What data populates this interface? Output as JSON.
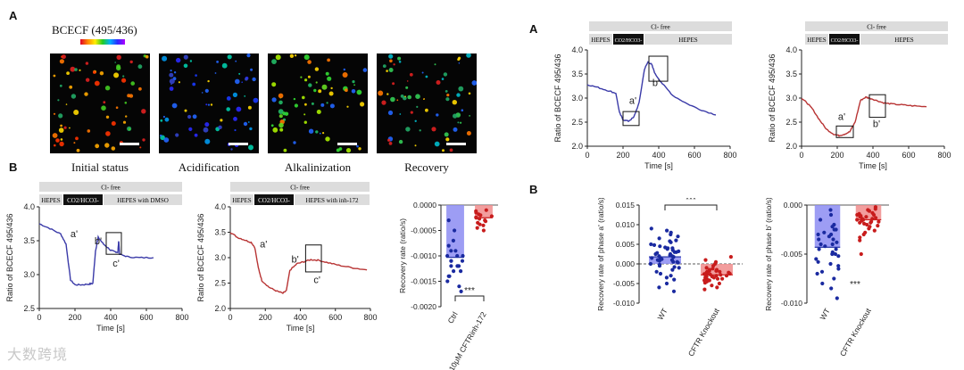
{
  "panel_letters": {
    "left_top": "A",
    "left_bottom": "B",
    "right_top": "A",
    "right_bottom": "B"
  },
  "colorbar": {
    "title": "BCECF (495/436)"
  },
  "micro_captions": [
    "Initial status",
    "Acidification",
    "Alkalinization",
    "Recovery"
  ],
  "protocol_bars": {
    "left1": {
      "top": "Cl- free",
      "seg1": "HEPES",
      "seg2": "CO2/HCO3-",
      "seg3": "HEPES with DMSO"
    },
    "left2": {
      "top": "Cl- free",
      "seg1": "HEPES",
      "seg2": "CO2/HCO3-",
      "seg3": "HEPES with inh-172"
    },
    "right1": {
      "top": "Cl- free",
      "seg1": "HEPES",
      "seg2": "CO2/HCO3-",
      "seg3": "HEPES"
    },
    "right2": {
      "top": "Cl- free",
      "seg1": "HEPES",
      "seg2": "CO2/HCO3-",
      "seg3": "HEPES"
    }
  },
  "colors": {
    "blue_trace": "#3a3aa8",
    "red_trace": "#b83434",
    "blue_bar": "#8c8cf2",
    "red_bar": "#f08c8c",
    "blue_dot": "#1a2aa0",
    "red_dot": "#c81c1c"
  },
  "chart_data": [
    {
      "id": "B-trace-dmso",
      "type": "line",
      "ylabel": "Ratio of BCECF 495/436",
      "xlabel": "Time [s]",
      "xlim": [
        0,
        800
      ],
      "ylim": [
        2.5,
        4.0
      ],
      "xticks": [
        "0",
        "200",
        "400",
        "600",
        "800"
      ],
      "yticks": [
        "2.5",
        "3.0",
        "3.5",
        "4.0"
      ],
      "annotations": [
        "a'",
        "b'",
        "c'"
      ],
      "series": [
        {
          "name": "DMSO",
          "x": [
            0,
            60,
            120,
            150,
            175,
            200,
            240,
            280,
            300,
            315,
            330,
            360,
            400,
            420,
            440,
            445,
            450,
            500,
            560,
            640
          ],
          "y": [
            3.75,
            3.68,
            3.6,
            3.45,
            2.92,
            2.85,
            2.85,
            2.86,
            2.87,
            3.35,
            3.55,
            3.45,
            3.36,
            3.34,
            3.33,
            3.5,
            3.3,
            3.26,
            3.25,
            3.25
          ]
        }
      ]
    },
    {
      "id": "B-trace-inh172",
      "type": "line",
      "ylabel": "Ratio of BCECF 495/436",
      "xlabel": "Time [s]",
      "xlim": [
        0,
        800
      ],
      "ylim": [
        2.0,
        4.0
      ],
      "xticks": [
        "0",
        "200",
        "400",
        "600",
        "800"
      ],
      "yticks": [
        "2.0",
        "2.5",
        "3.0",
        "3.5",
        "4.0"
      ],
      "annotations": [
        "a'",
        "b'",
        "c'"
      ],
      "series": [
        {
          "name": "inh-172",
          "x": [
            0,
            40,
            80,
            120,
            140,
            160,
            180,
            220,
            260,
            300,
            320,
            340,
            380,
            420,
            460,
            500,
            560,
            620,
            700,
            780
          ],
          "y": [
            3.5,
            3.4,
            3.35,
            3.3,
            3.2,
            2.8,
            2.55,
            2.42,
            2.35,
            2.3,
            2.35,
            2.75,
            2.88,
            2.92,
            2.96,
            2.95,
            2.9,
            2.85,
            2.8,
            2.76
          ]
        }
      ]
    },
    {
      "id": "B-recovery-bar",
      "type": "bar",
      "ylabel": "Recovery rate (ratio/s)",
      "categories": [
        "Ctrl",
        "10μM CFTRinh-172"
      ],
      "values": [
        -0.00103,
        -0.00025
      ],
      "ylim": [
        -0.002,
        0.0
      ],
      "yticks": [
        "0.0000",
        "-0.0005",
        "-0.0010",
        "-0.0015",
        "-0.0020"
      ],
      "significance": "***",
      "points": [
        [
          -0.0003,
          -0.0005,
          -0.0007,
          -0.0008,
          -0.0009,
          -0.0009,
          -0.001,
          -0.001,
          -0.001,
          -0.0011,
          -0.0011,
          -0.0011,
          -0.0012,
          -0.0012,
          -0.0012,
          -0.0013,
          -0.0013,
          -0.0014,
          -0.0014,
          -0.0015,
          -0.0016,
          -0.0017
        ],
        [
          -0.0001,
          -0.00012,
          -0.00015,
          -0.00018,
          -0.0002,
          -0.00022,
          -0.00024,
          -0.00025,
          -0.00027,
          -0.0003,
          -0.00032,
          -0.00035,
          -0.00038,
          -0.0004,
          -0.00045,
          -0.0005
        ]
      ]
    },
    {
      "id": "A-trace-wt",
      "type": "line",
      "ylabel": "Ratio of BCECF 495/436",
      "xlabel": "Time [s]",
      "xlim": [
        0,
        800
      ],
      "ylim": [
        2.0,
        4.0
      ],
      "xticks": [
        "0",
        "200",
        "400",
        "600",
        "800"
      ],
      "yticks": [
        "2.0",
        "2.5",
        "3.0",
        "3.5",
        "4.0"
      ],
      "annotations": [
        "a'",
        "b'"
      ],
      "series": [
        {
          "name": "WT",
          "x": [
            0,
            60,
            120,
            160,
            180,
            200,
            230,
            260,
            290,
            320,
            340,
            360,
            380,
            420,
            480,
            560,
            640,
            720
          ],
          "y": [
            3.28,
            3.22,
            3.15,
            3.1,
            2.7,
            2.55,
            2.52,
            2.6,
            2.9,
            3.6,
            3.75,
            3.7,
            3.5,
            3.3,
            3.05,
            2.88,
            2.75,
            2.65
          ]
        }
      ]
    },
    {
      "id": "A-trace-ko",
      "type": "line",
      "ylabel": "Ratio of BCECF 495/436",
      "xlabel": "Time [s]",
      "xlim": [
        0,
        800
      ],
      "ylim": [
        2.0,
        4.0
      ],
      "xticks": [
        "0",
        "200",
        "400",
        "600",
        "800"
      ],
      "yticks": [
        "2.0",
        "2.5",
        "3.0",
        "3.5",
        "4.0"
      ],
      "annotations": [
        "a'",
        "b'"
      ],
      "series": [
        {
          "name": "CFTR Knockout",
          "x": [
            0,
            30,
            60,
            100,
            140,
            180,
            210,
            240,
            270,
            300,
            330,
            360,
            380,
            420,
            460,
            500,
            560,
            620,
            700
          ],
          "y": [
            3.0,
            2.9,
            2.78,
            2.55,
            2.35,
            2.25,
            2.22,
            2.25,
            2.3,
            2.5,
            2.95,
            3.02,
            3.0,
            2.95,
            2.9,
            2.88,
            2.86,
            2.84,
            2.82
          ]
        }
      ]
    },
    {
      "id": "B-phase-a",
      "type": "scatter",
      "ylabel": "Recovery rate of phase a' (ratio/s)",
      "categories": [
        "WT",
        "CFTR Knockout"
      ],
      "values": [
        0.0018,
        -0.0028
      ],
      "ylim": [
        -0.01,
        0.015
      ],
      "yticks": [
        "0.015",
        "0.010",
        "0.005",
        "0.000",
        "-0.005",
        "-0.010"
      ],
      "significance": "***",
      "points": [
        [
          0.009,
          0.0085,
          0.008,
          0.0075,
          0.007,
          0.0065,
          0.006,
          0.0058,
          0.0055,
          0.005,
          0.0048,
          0.0045,
          0.0042,
          0.004,
          0.0038,
          0.0035,
          0.0032,
          0.003,
          0.0028,
          0.0025,
          0.0022,
          0.002,
          0.0018,
          0.0015,
          0.0012,
          0.001,
          0.0008,
          0.0005,
          0.0003,
          0.0,
          -0.0002,
          -0.0005,
          -0.0008,
          -0.001,
          -0.0015,
          -0.002,
          -0.0025,
          -0.003,
          -0.0035,
          -0.004,
          -0.005,
          -0.006,
          -0.007,
          0.002,
          0.003,
          0.001,
          0.0025,
          0.004,
          0.0015,
          0.0005
        ],
        [
          0.0018,
          0.001,
          0.0005,
          0.0,
          -0.0005,
          -0.001,
          -0.0012,
          -0.0015,
          -0.0018,
          -0.002,
          -0.0022,
          -0.0025,
          -0.0027,
          -0.003,
          -0.0032,
          -0.0035,
          -0.0038,
          -0.004,
          -0.0042,
          -0.0045,
          -0.0048,
          -0.005,
          -0.0055,
          -0.006,
          -0.0065,
          -0.002,
          -0.003,
          -0.0025,
          -0.0035,
          -0.0015,
          -0.0028,
          -0.0032,
          -0.0022,
          -0.0038,
          -0.0042,
          -0.0018,
          -0.0026,
          -0.0033
        ]
      ]
    },
    {
      "id": "B-phase-b",
      "type": "scatter",
      "ylabel": "Recovery rate of phase b' (ratio/s)",
      "categories": [
        "WT",
        "CFTR Knockout"
      ],
      "values": [
        -0.0043,
        -0.0015
      ],
      "ylim": [
        -0.01,
        0.0
      ],
      "yticks": [
        "0.000",
        "-0.005",
        "-0.010"
      ],
      "significance": "***",
      "points": [
        [
          -0.0005,
          -0.001,
          -0.0015,
          -0.002,
          -0.0022,
          -0.0025,
          -0.0028,
          -0.003,
          -0.0032,
          -0.0035,
          -0.0038,
          -0.004,
          -0.0042,
          -0.0045,
          -0.0048,
          -0.005,
          -0.0052,
          -0.0055,
          -0.0058,
          -0.006,
          -0.0062,
          -0.0065,
          -0.0068,
          -0.007,
          -0.0075,
          -0.008,
          -0.0085,
          -0.0095,
          -0.003,
          -0.004,
          -0.0025,
          -0.0045,
          -0.0035,
          -0.005
        ],
        [
          -0.0002,
          -0.0004,
          -0.0005,
          -0.0006,
          -0.0008,
          -0.0009,
          -0.001,
          -0.0011,
          -0.0012,
          -0.0013,
          -0.0014,
          -0.0015,
          -0.0016,
          -0.0017,
          -0.0018,
          -0.0019,
          -0.002,
          -0.0021,
          -0.0022,
          -0.0024,
          -0.0026,
          -0.0028,
          -0.003,
          -0.0033,
          -0.0036,
          -0.005,
          -0.0012,
          -0.0015,
          -0.0018,
          -0.001,
          -0.0014,
          -0.0017
        ]
      ]
    }
  ],
  "watermark": "大数跨境"
}
